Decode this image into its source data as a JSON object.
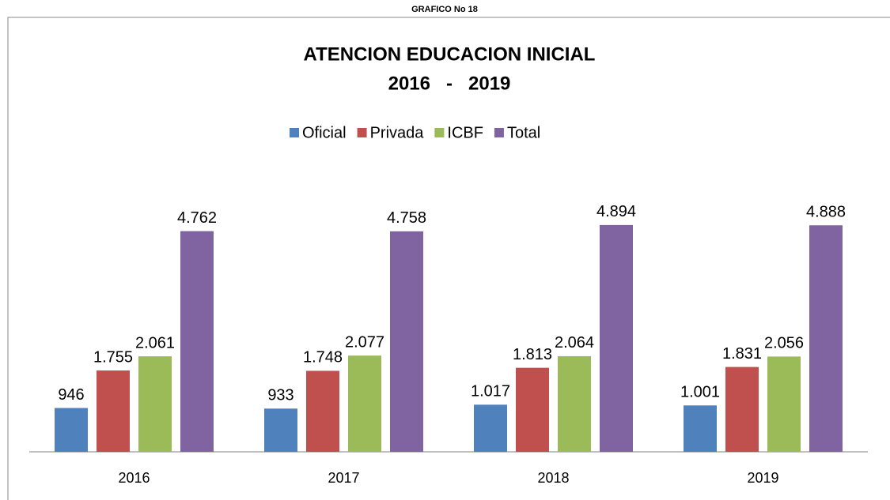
{
  "chart_data": {
    "type": "bar",
    "header": "GRAFICO No 18",
    "title": "ATENCION EDUCACION INICIAL",
    "subtitle": "2016   -   2019",
    "categories": [
      "2016",
      "2017",
      "2018",
      "2019"
    ],
    "series": [
      {
        "name": "Oficial",
        "color": "#4f81bd",
        "values": [
          946,
          933,
          1017,
          1001
        ],
        "value_labels": [
          "946",
          "933",
          "1.017",
          "1.001"
        ]
      },
      {
        "name": "Privada",
        "color": "#c0504d",
        "values": [
          1755,
          1748,
          1813,
          1831
        ],
        "value_labels": [
          "1.755",
          "1.748",
          "1.813",
          "1.831"
        ]
      },
      {
        "name": "ICBF",
        "color": "#9bbb59",
        "values": [
          2061,
          2077,
          2064,
          2056
        ],
        "value_labels": [
          "2.061",
          "2.077",
          "2.064",
          "2.056"
        ]
      },
      {
        "name": "Total",
        "color": "#8064a2",
        "values": [
          4762,
          4758,
          4894,
          4888
        ],
        "value_labels": [
          "4.762",
          "4.758",
          "4.894",
          "4.888"
        ]
      }
    ],
    "ylim": [
      0,
      6000
    ],
    "legend": "top"
  }
}
